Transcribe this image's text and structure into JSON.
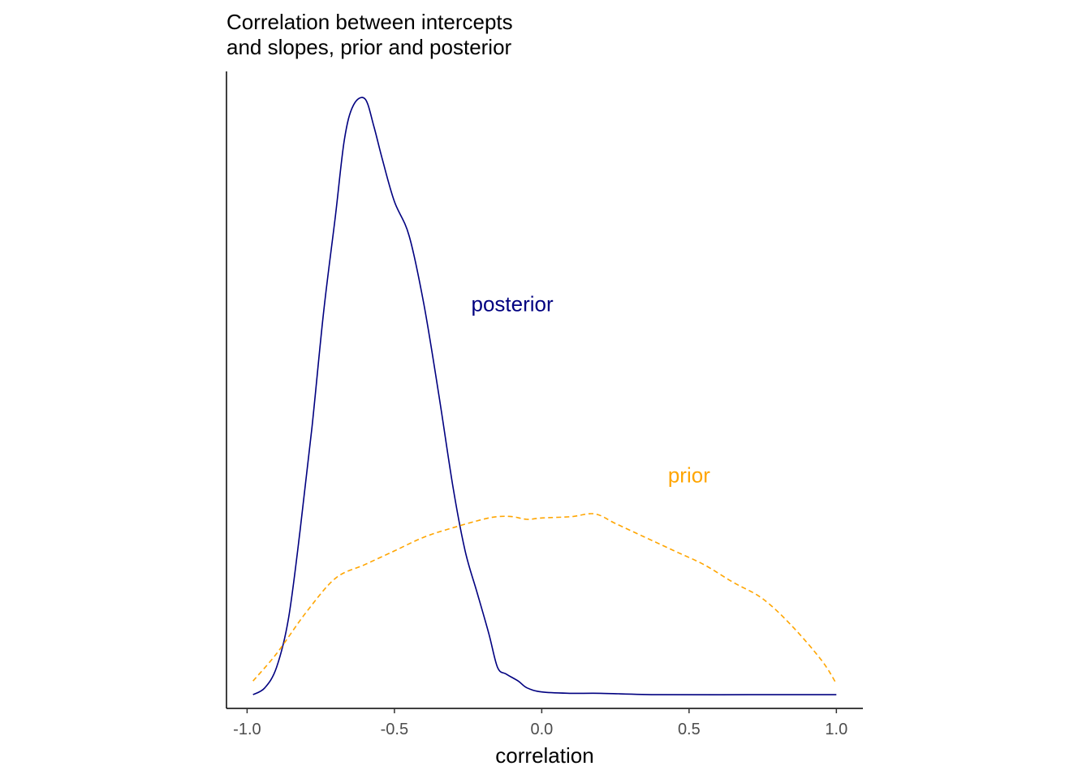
{
  "chart_data": {
    "type": "line",
    "title_lines": [
      "Correlation between intercepts",
      "and slopes, prior and posterior"
    ],
    "xlabel": "correlation",
    "ylabel": "",
    "xlim": [
      -1.07,
      1.09
    ],
    "ylim": [
      -0.1,
      4.55
    ],
    "x_ticks": [
      -1.0,
      -0.5,
      0.0,
      0.5,
      1.0
    ],
    "x_tick_labels": [
      "-1.0",
      "-0.5",
      "0.0",
      "0.5",
      "1.0"
    ],
    "y_axis_ticks_shown": false,
    "grid": false,
    "legend": "none (direct labels)",
    "series": [
      {
        "name": "posterior",
        "color": "#000080",
        "dash": "solid",
        "label_anchor": [
          -0.1,
          2.8
        ],
        "points": [
          [
            -0.98,
            0.0
          ],
          [
            -0.94,
            0.05
          ],
          [
            -0.9,
            0.2
          ],
          [
            -0.86,
            0.55
          ],
          [
            -0.82,
            1.2
          ],
          [
            -0.78,
            1.95
          ],
          [
            -0.74,
            2.8
          ],
          [
            -0.7,
            3.5
          ],
          [
            -0.67,
            4.05
          ],
          [
            -0.64,
            4.3
          ],
          [
            -0.6,
            4.35
          ],
          [
            -0.57,
            4.15
          ],
          [
            -0.54,
            3.9
          ],
          [
            -0.5,
            3.6
          ],
          [
            -0.45,
            3.35
          ],
          [
            -0.4,
            2.85
          ],
          [
            -0.35,
            2.2
          ],
          [
            -0.3,
            1.5
          ],
          [
            -0.26,
            1.05
          ],
          [
            -0.22,
            0.75
          ],
          [
            -0.18,
            0.45
          ],
          [
            -0.15,
            0.2
          ],
          [
            -0.12,
            0.15
          ],
          [
            -0.08,
            0.1
          ],
          [
            -0.05,
            0.05
          ],
          [
            0.0,
            0.02
          ],
          [
            0.1,
            0.01
          ],
          [
            0.2,
            0.01
          ],
          [
            0.4,
            0.0
          ],
          [
            0.7,
            0.0
          ],
          [
            1.0,
            0.0
          ]
        ]
      },
      {
        "name": "prior",
        "color": "#FFA500",
        "dash": "dashed",
        "label_anchor": [
          0.5,
          1.55
        ],
        "points": [
          [
            -0.98,
            0.1
          ],
          [
            -0.9,
            0.3
          ],
          [
            -0.8,
            0.6
          ],
          [
            -0.7,
            0.85
          ],
          [
            -0.6,
            0.95
          ],
          [
            -0.5,
            1.05
          ],
          [
            -0.4,
            1.15
          ],
          [
            -0.3,
            1.22
          ],
          [
            -0.2,
            1.28
          ],
          [
            -0.15,
            1.3
          ],
          [
            -0.1,
            1.3
          ],
          [
            -0.05,
            1.28
          ],
          [
            0.0,
            1.29
          ],
          [
            0.1,
            1.3
          ],
          [
            0.18,
            1.32
          ],
          [
            0.25,
            1.25
          ],
          [
            0.35,
            1.15
          ],
          [
            0.45,
            1.05
          ],
          [
            0.55,
            0.95
          ],
          [
            0.65,
            0.82
          ],
          [
            0.75,
            0.7
          ],
          [
            0.85,
            0.5
          ],
          [
            0.95,
            0.25
          ],
          [
            1.0,
            0.08
          ]
        ]
      }
    ]
  }
}
